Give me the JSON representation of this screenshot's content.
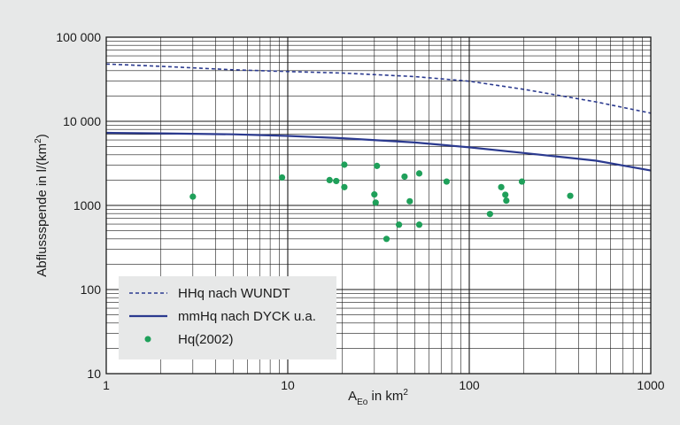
{
  "chart_data": {
    "type": "scatter",
    "x_scale": "log",
    "y_scale": "log",
    "xlim": [
      1,
      1000
    ],
    "ylim": [
      10,
      100000
    ],
    "grid": true,
    "legend_placement": "bottom-left",
    "x_ticks": [
      1,
      10,
      100,
      1000
    ],
    "x_tick_labels": [
      "1",
      "10",
      "100",
      "1000"
    ],
    "y_ticks": [
      10,
      100,
      1000,
      10000,
      100000
    ],
    "y_tick_labels": [
      "10",
      "100",
      "1000",
      "10 000",
      "100 000"
    ],
    "ylabel": {
      "main": "Abflussspende in l/(km",
      "sup": "2",
      "end": ")"
    },
    "xlabel": {
      "main": "A",
      "sub": "Eo",
      "mid": " in km",
      "sup": "2"
    },
    "series": [
      {
        "name": "HHq nach WUNDT",
        "kind": "line",
        "style": "dashed",
        "color": "#2b3a8f",
        "x": [
          1,
          2,
          5,
          10,
          20,
          50,
          100,
          200,
          500,
          1000
        ],
        "y": [
          48000,
          45000,
          41000,
          39000,
          37500,
          34000,
          30000,
          24000,
          17000,
          12500
        ]
      },
      {
        "name": "mmHq nach DYCK u.a.",
        "kind": "line",
        "style": "solid",
        "color": "#2b3a8f",
        "x": [
          1,
          2,
          5,
          10,
          20,
          50,
          100,
          200,
          500,
          1000
        ],
        "y": [
          7300,
          7200,
          7000,
          6700,
          6300,
          5600,
          4900,
          4200,
          3400,
          2600
        ]
      },
      {
        "name": "Hq(2002)",
        "kind": "scatter",
        "color": "#1fa05a",
        "x": [
          3,
          9.3,
          17,
          18.5,
          20.5,
          20.5,
          30,
          30.5,
          31,
          35,
          41,
          44,
          47,
          53,
          53,
          75,
          130,
          150,
          158,
          160,
          195,
          360
        ],
        "y": [
          1270,
          2150,
          2000,
          1950,
          3050,
          1650,
          1350,
          1080,
          2950,
          400,
          590,
          2200,
          1120,
          2400,
          590,
          1920,
          790,
          1650,
          1340,
          1140,
          1920,
          1300
        ]
      }
    ]
  }
}
